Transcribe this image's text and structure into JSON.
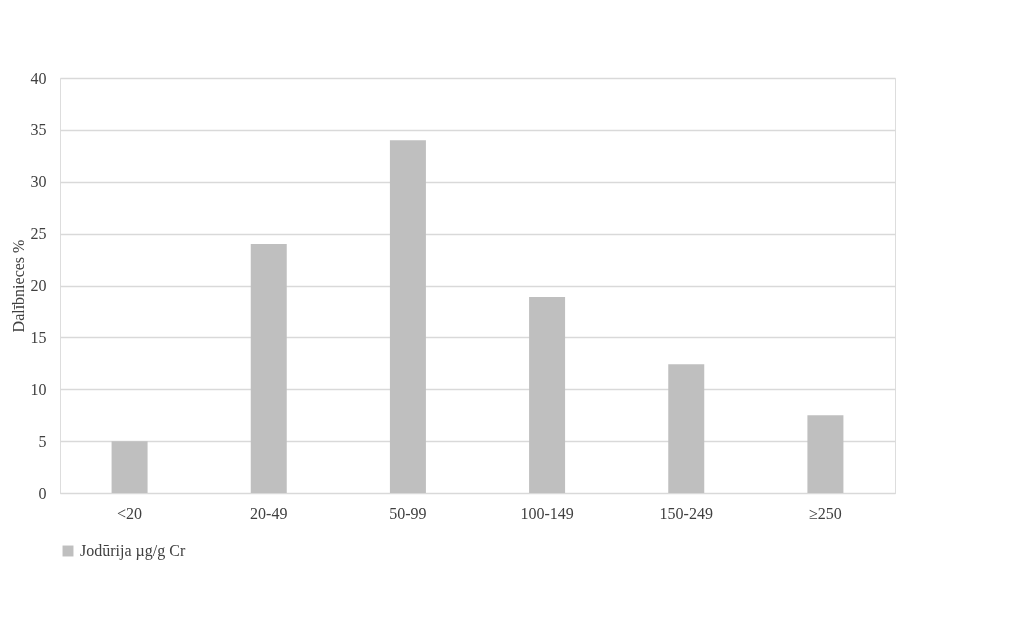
{
  "chart_data": {
    "type": "bar",
    "ylabel": "Dalībnieces %",
    "categories": [
      "<20",
      "20-49",
      "50-99",
      "100-149",
      "150-249",
      "≥250"
    ],
    "series": [
      {
        "name": "Jodūrija µg/g Cr",
        "color": "#bfbfbf",
        "values": [
          5,
          24,
          34,
          18.9,
          12.4,
          7.5
        ]
      }
    ],
    "ylim": [
      0,
      40
    ],
    "yticks": [
      0,
      5,
      10,
      15,
      20,
      25,
      30,
      35,
      40
    ],
    "grid": "y",
    "legend": "bottom"
  }
}
